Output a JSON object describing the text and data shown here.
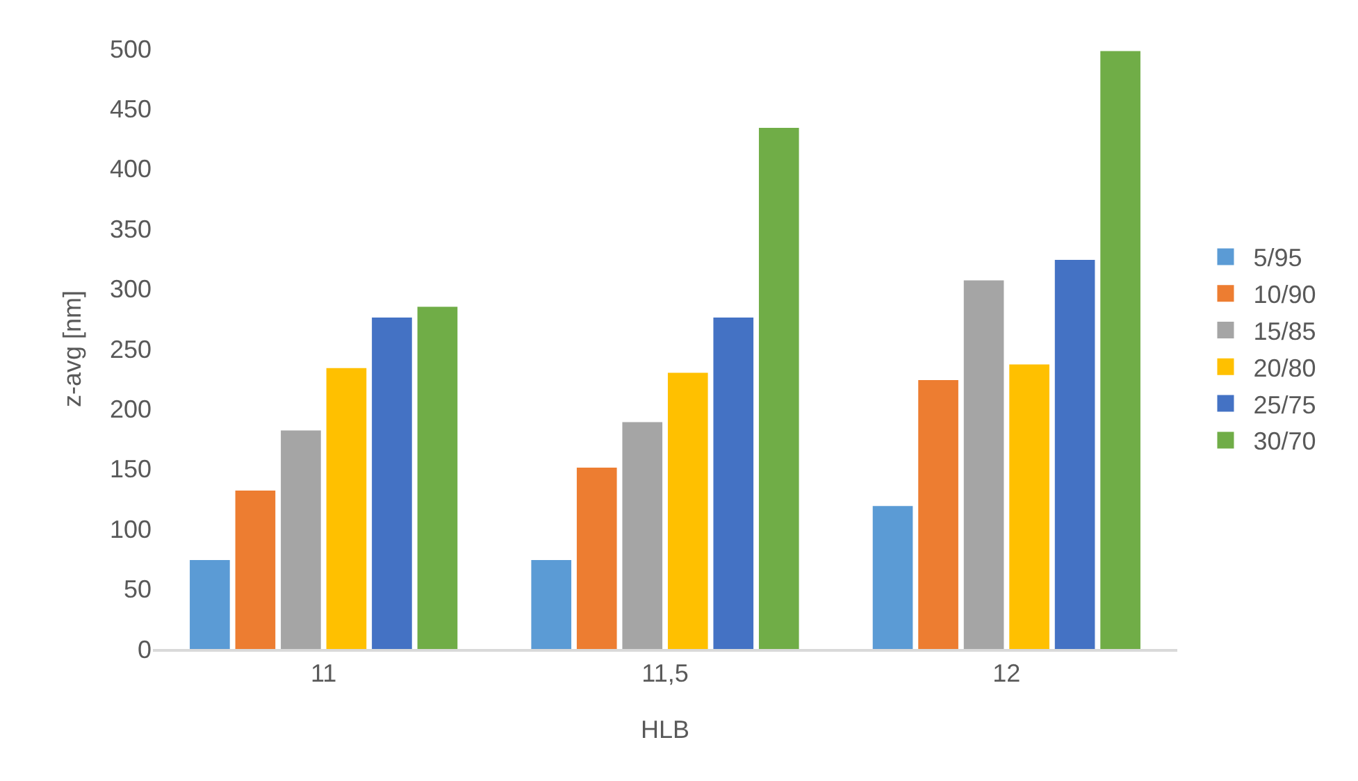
{
  "chart_data": {
    "type": "bar",
    "xlabel": "HLB",
    "ylabel": "z-avg [nm]",
    "categories": [
      "11",
      "11,5",
      "12"
    ],
    "series": [
      {
        "name": "5/95",
        "color": "#5b9bd5",
        "values": [
          74,
          74,
          119
        ]
      },
      {
        "name": "10/90",
        "color": "#ed7d31",
        "values": [
          132,
          151,
          224
        ]
      },
      {
        "name": "15/85",
        "color": "#a5a5a5",
        "values": [
          182,
          189,
          307
        ]
      },
      {
        "name": "20/80",
        "color": "#ffc000",
        "values": [
          234,
          230,
          237
        ]
      },
      {
        "name": "25/75",
        "color": "#4472c4",
        "values": [
          276,
          276,
          324
        ]
      },
      {
        "name": "30/70",
        "color": "#70ad47",
        "values": [
          285,
          434,
          498
        ]
      }
    ],
    "ylim": [
      0,
      500
    ],
    "yticks": [
      0,
      50,
      100,
      150,
      200,
      250,
      300,
      350,
      400,
      450,
      500
    ],
    "grid": false,
    "legend": "right"
  }
}
